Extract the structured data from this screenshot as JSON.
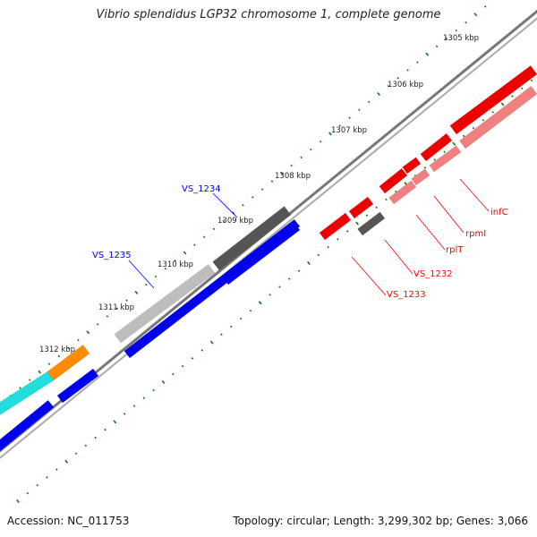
{
  "title": "Vibrio splendidus LGP32 chromosome 1, complete genome",
  "footer": {
    "accession": "Accession: NC_011753",
    "summary": "Topology: circular; Length: 3,299,302 bp; Genes: 3,066"
  },
  "ticks": [
    {
      "label": "1305 kbp",
      "pos": 1305
    },
    {
      "label": "1306 kbp",
      "pos": 1306
    },
    {
      "label": "1307 kbp",
      "pos": 1307
    },
    {
      "label": "1308 kbp",
      "pos": 1308
    },
    {
      "label": "1309 kbp",
      "pos": 1309
    },
    {
      "label": "1310 kbp",
      "pos": 1310
    },
    {
      "label": "1311 kbp",
      "pos": 1311
    },
    {
      "label": "1312 kbp",
      "pos": 1312
    }
  ],
  "gene_labels": {
    "top": [
      {
        "name": "VS_1234",
        "color": "#0000ff"
      },
      {
        "name": "VS_1235",
        "color": "#0000ff"
      }
    ],
    "bottom": [
      {
        "name": "infC",
        "color": "#ff0000"
      },
      {
        "name": "rpmI",
        "color": "#ff0000"
      },
      {
        "name": "rplT",
        "color": "#ff0000"
      },
      {
        "name": "VS_1232",
        "color": "#ff0000"
      },
      {
        "name": "VS_1233",
        "color": "#ff0000"
      }
    ]
  },
  "colors": {
    "backbone": "#888888",
    "ticks": "#0a7a0a",
    "gene_red": "#ee0000",
    "gene_pink": "#f08080",
    "gene_dark_gray": "#555555",
    "gene_light_gray": "#bdbdbd",
    "gene_blue": "#0000ee",
    "gene_cyan": "#22dddd",
    "gene_orange": "#ff8c00"
  }
}
